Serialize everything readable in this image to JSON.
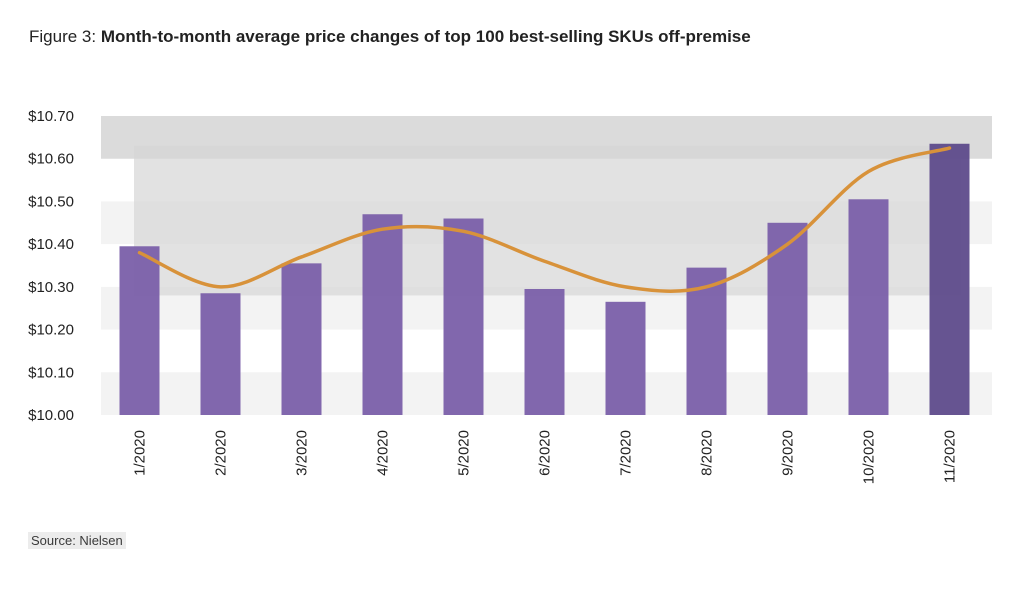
{
  "title": {
    "prefix": "Figure 3:",
    "main": "Month-to-month average price changes of top 100 best-selling SKUs off-premise"
  },
  "source": "Source: Nielsen",
  "colors": {
    "bar": "#7a5fa9",
    "bar_highlight": "#5e4b8b",
    "line": "#d8923a",
    "band_alt": "#f3f3f3",
    "highlight_band": "#d6d6d6"
  },
  "chart_data": {
    "type": "bar",
    "categories": [
      "1/2020",
      "2/2020",
      "3/2020",
      "4/2020",
      "5/2020",
      "6/2020",
      "7/2020",
      "8/2020",
      "9/2020",
      "10/2020",
      "11/2020"
    ],
    "series": [
      {
        "type": "bar",
        "values": [
          10.395,
          10.285,
          10.355,
          10.47,
          10.46,
          10.295,
          10.265,
          10.345,
          10.45,
          10.505,
          10.635
        ]
      },
      {
        "type": "line",
        "smooth": true,
        "values": [
          10.38,
          10.3,
          10.37,
          10.435,
          10.43,
          10.36,
          10.3,
          10.3,
          10.4,
          10.57,
          10.625
        ]
      }
    ],
    "ylim": [
      10.0,
      10.7
    ],
    "yticks": [
      "$10.00",
      "$10.10",
      "$10.20",
      "$10.30",
      "$10.40",
      "$10.50",
      "$10.60",
      "$10.70"
    ],
    "xlabel": "",
    "ylabel": "",
    "grid": "alternating horizontal bands",
    "legend": "none"
  }
}
